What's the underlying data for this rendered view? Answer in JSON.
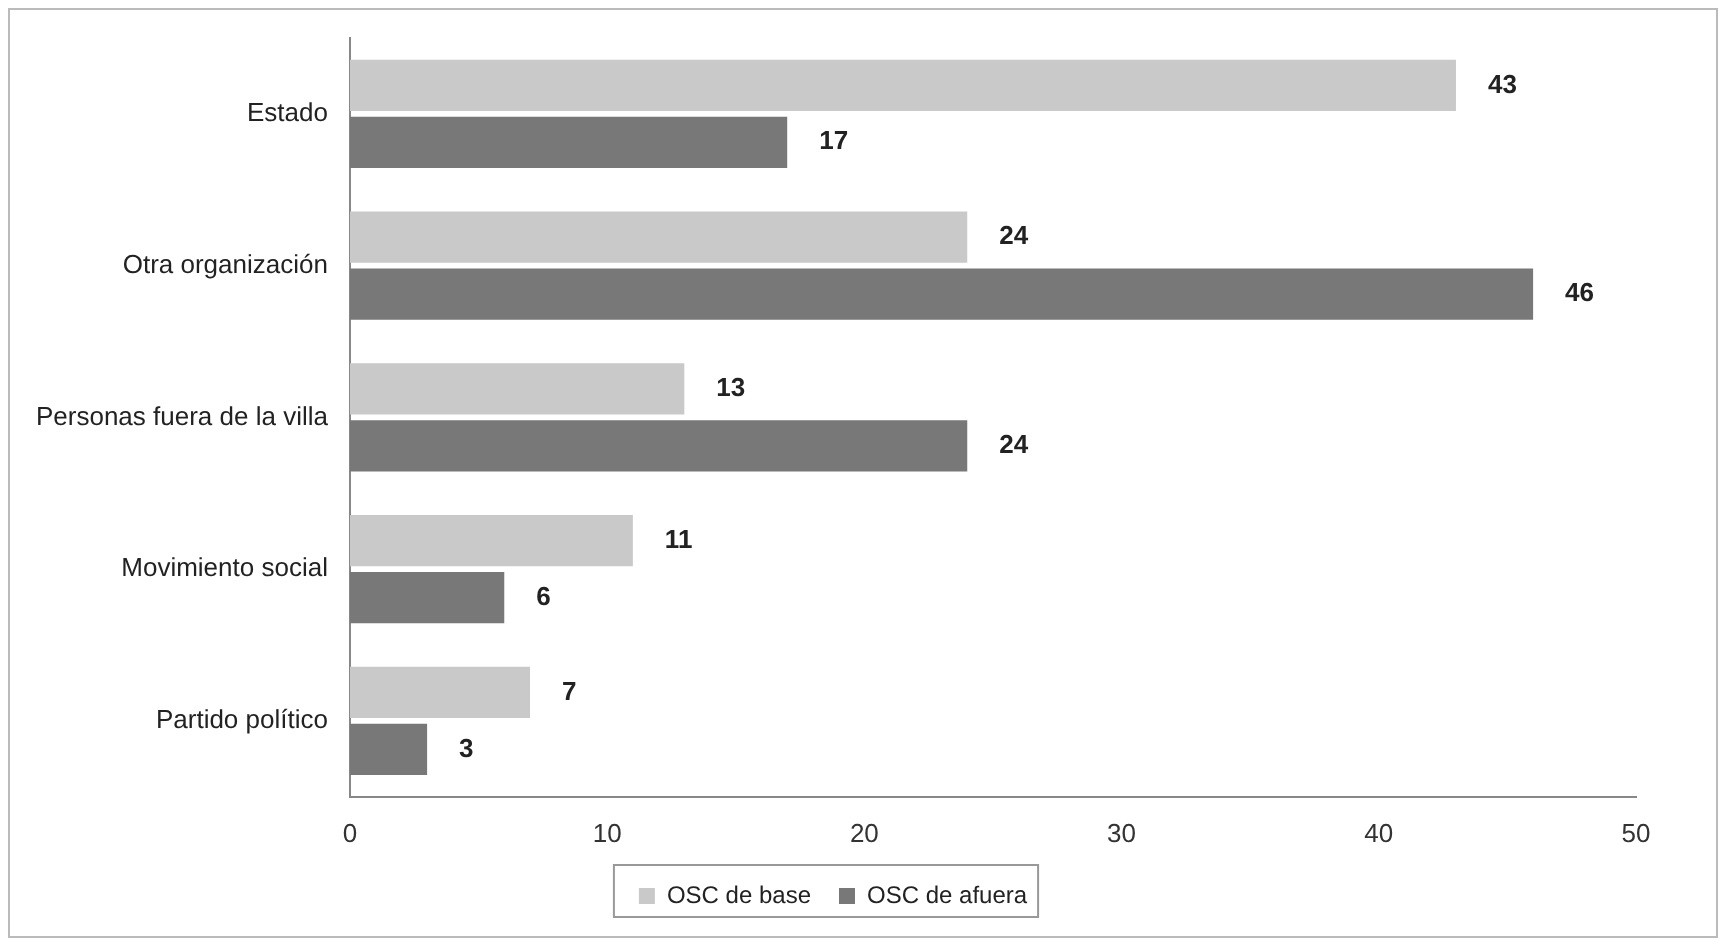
{
  "chart_data": {
    "type": "bar",
    "orientation": "horizontal",
    "categories": [
      "Estado",
      "Otra organización",
      "Personas fuera de la villa",
      "Movimiento social",
      "Partido político"
    ],
    "series": [
      {
        "name": "OSC de base",
        "color": "#c9c9c9",
        "values": [
          43,
          24,
          13,
          11,
          7
        ]
      },
      {
        "name": "OSC de afuera",
        "color": "#787878",
        "values": [
          17,
          46,
          24,
          6,
          3
        ]
      }
    ],
    "xlim": [
      0,
      50
    ],
    "xticks": [
      0,
      10,
      20,
      30,
      40,
      50
    ],
    "grid": false,
    "legend": "bottom",
    "data_labels": true
  }
}
